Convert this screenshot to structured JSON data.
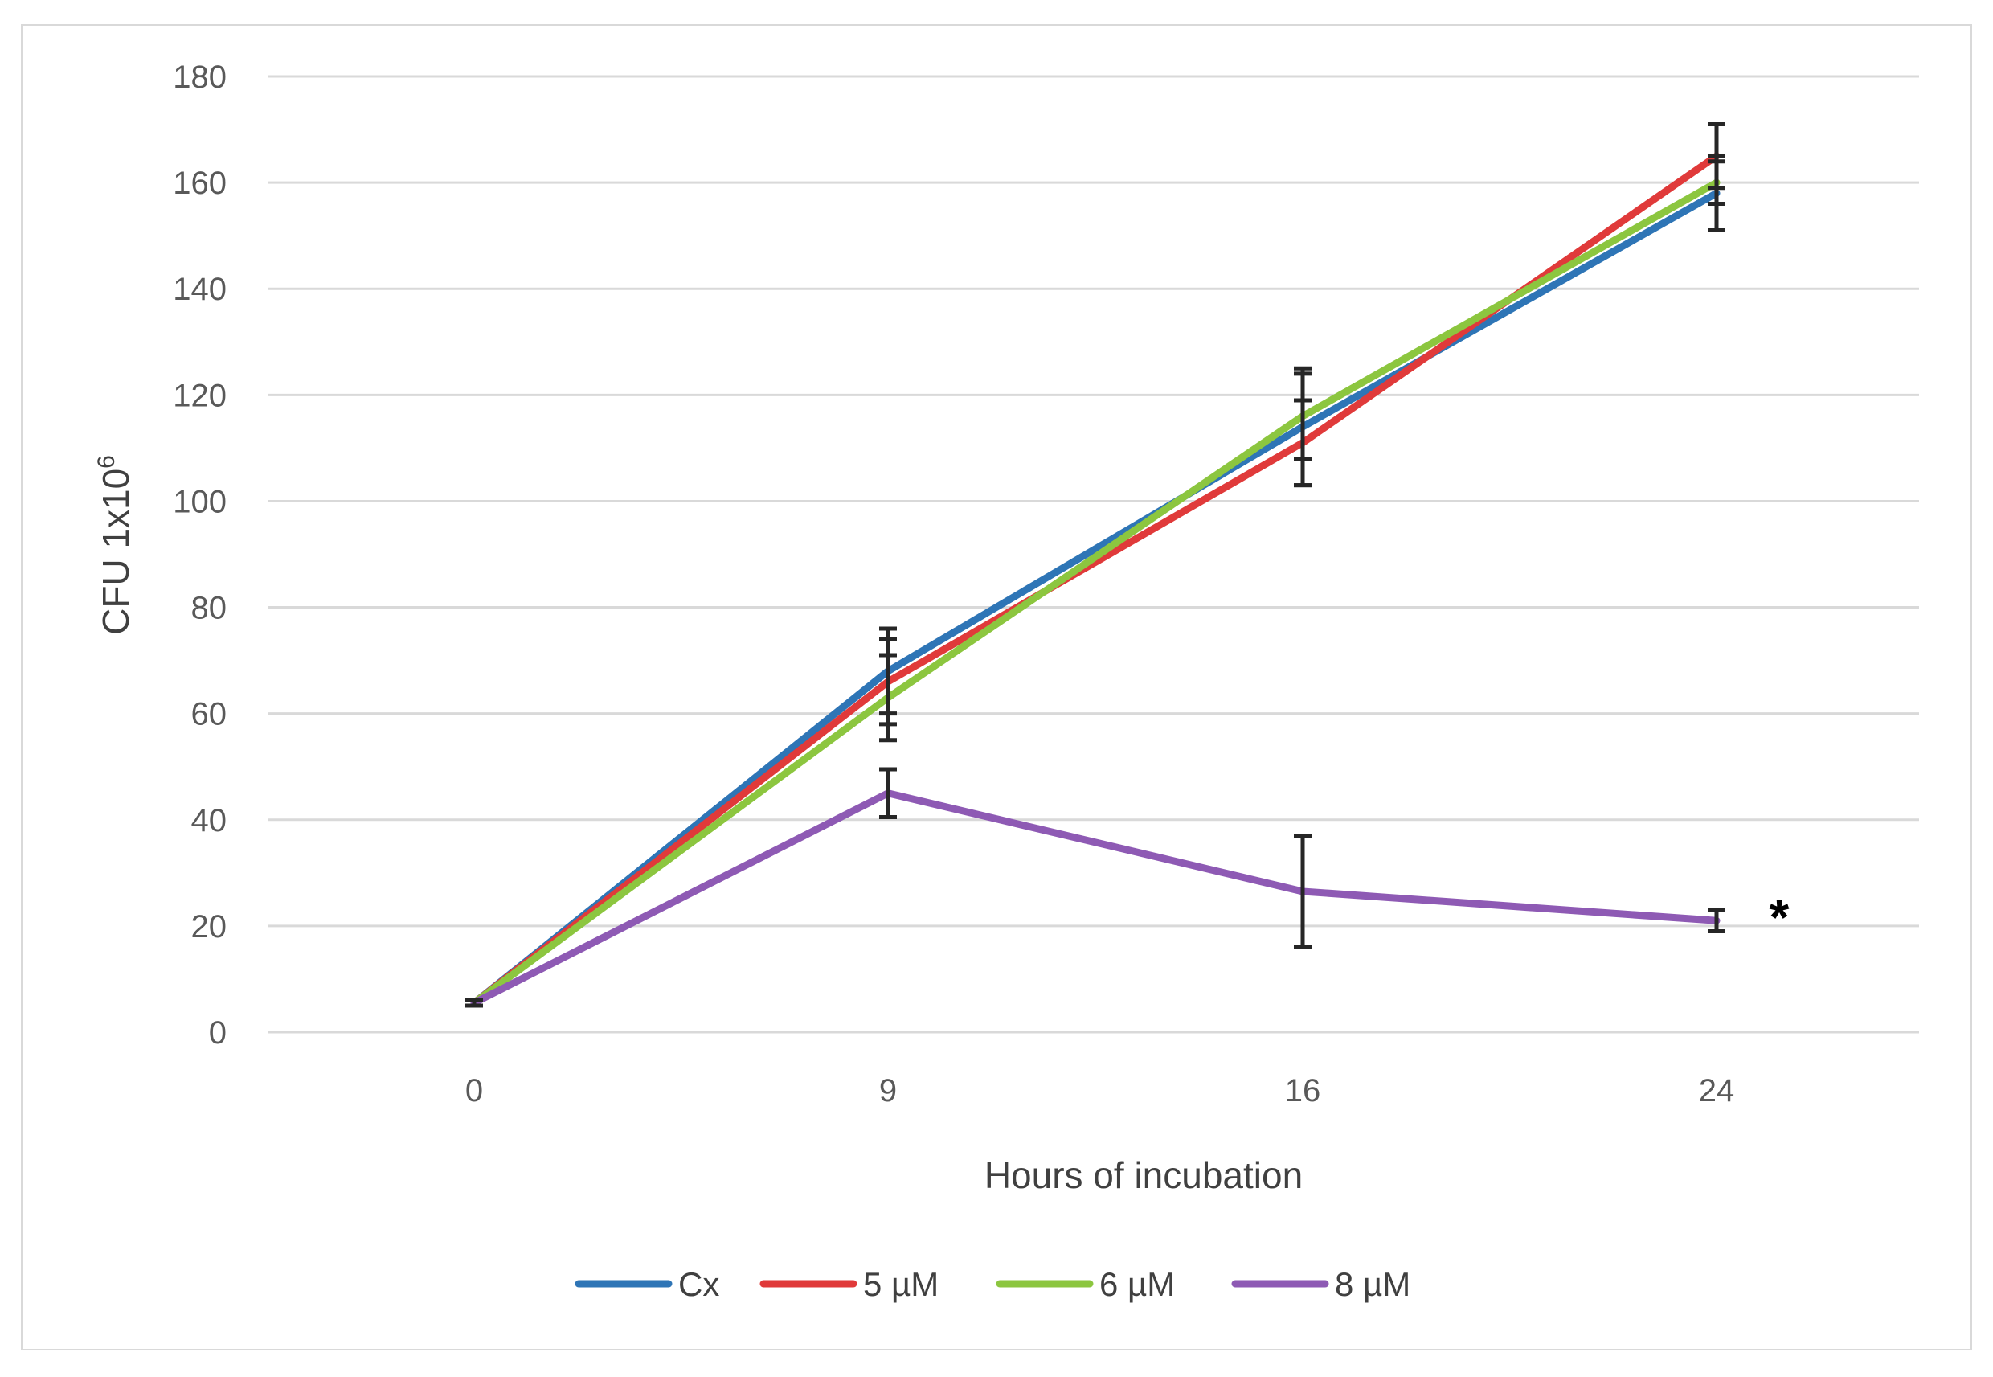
{
  "chart_data": {
    "type": "line",
    "title": "",
    "xlabel": "Hours of incubation",
    "ylabel": "CFU 1x10",
    "ylabel_superscript": "6",
    "categories": [
      "0",
      "9",
      "16",
      "24"
    ],
    "ylim": [
      0,
      180
    ],
    "yticks": [
      "0",
      "20",
      "40",
      "60",
      "80",
      "100",
      "120",
      "140",
      "160",
      "180"
    ],
    "grid": true,
    "legend_position": "bottom",
    "annotation": "*",
    "series": [
      {
        "name": "Cx",
        "color": "#2e75b6",
        "values": [
          5.5,
          68,
          114,
          158
        ],
        "errors": [
          0.5,
          8,
          11,
          7
        ]
      },
      {
        "name": "5 µM",
        "color": "#e03a3a",
        "values": [
          5.5,
          66,
          111,
          165
        ],
        "errors": [
          0.5,
          8,
          8,
          6
        ]
      },
      {
        "name": "6 µM",
        "color": "#8cc63f",
        "values": [
          5.5,
          63,
          116,
          160
        ],
        "errors": [
          0.5,
          8,
          8,
          4
        ]
      },
      {
        "name": "8 µM",
        "color": "#8e5ab4",
        "values": [
          5.5,
          45,
          26.5,
          21
        ],
        "errors": [
          0.5,
          4.5,
          10.5,
          2
        ]
      }
    ]
  }
}
